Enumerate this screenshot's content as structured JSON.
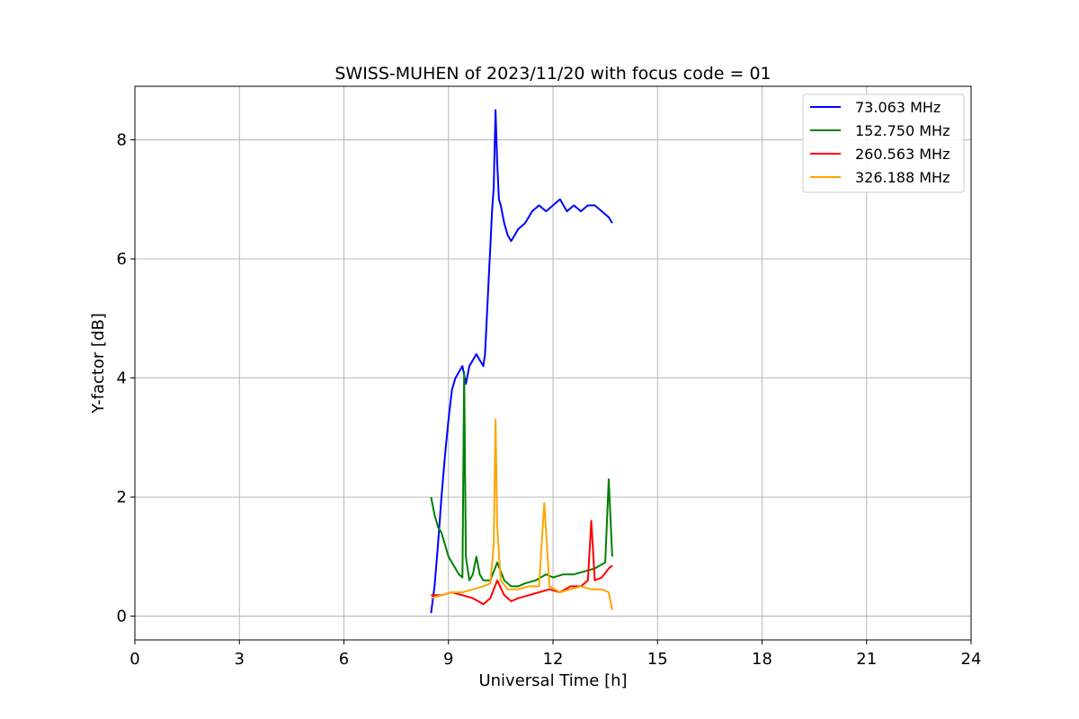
{
  "chart_data": {
    "type": "line",
    "title": "SWISS-MUHEN of 2023/11/20 with focus code = 01",
    "xlabel": "Universal Time [h]",
    "ylabel": "Y-factor [dB]",
    "xlim": [
      0,
      24
    ],
    "ylim": [
      -0.4,
      8.9
    ],
    "xticks": [
      "0",
      "3",
      "6",
      "9",
      "12",
      "15",
      "18",
      "21",
      "24"
    ],
    "yticks": [
      "0",
      "2",
      "4",
      "6",
      "8"
    ],
    "grid": true,
    "legend_position": "top-right",
    "series": [
      {
        "name": "73.063 MHz",
        "legend_label": " 73.063 MHz",
        "color": "#0000ff",
        "x": [
          8.5,
          8.6,
          8.7,
          8.8,
          8.9,
          9.0,
          9.1,
          9.2,
          9.3,
          9.4,
          9.5,
          9.6,
          9.7,
          9.8,
          9.9,
          10.0,
          10.05,
          10.1,
          10.15,
          10.2,
          10.25,
          10.3,
          10.35,
          10.4,
          10.45,
          10.5,
          10.6,
          10.7,
          10.8,
          10.9,
          11.0,
          11.2,
          11.4,
          11.6,
          11.8,
          12.0,
          12.2,
          12.4,
          12.6,
          12.8,
          13.0,
          13.2,
          13.4,
          13.6,
          13.7
        ],
        "y": [
          0.05,
          0.5,
          1.2,
          2.0,
          2.7,
          3.3,
          3.8,
          4.0,
          4.1,
          4.2,
          3.9,
          4.2,
          4.3,
          4.4,
          4.3,
          4.2,
          4.4,
          5.0,
          5.6,
          6.2,
          6.8,
          7.2,
          8.5,
          7.6,
          7.0,
          6.9,
          6.6,
          6.4,
          6.3,
          6.4,
          6.5,
          6.6,
          6.8,
          6.9,
          6.8,
          6.9,
          7.0,
          6.8,
          6.9,
          6.8,
          6.9,
          6.9,
          6.8,
          6.7,
          6.6
        ]
      },
      {
        "name": "152.750 MHz",
        "legend_label": "152.750 MHz",
        "color": "#008000",
        "x": [
          8.5,
          8.6,
          8.7,
          8.8,
          8.9,
          9.0,
          9.1,
          9.2,
          9.3,
          9.4,
          9.45,
          9.5,
          9.6,
          9.7,
          9.8,
          9.9,
          10.0,
          10.2,
          10.4,
          10.6,
          10.8,
          11.0,
          11.2,
          11.5,
          11.8,
          12.0,
          12.3,
          12.6,
          12.9,
          13.2,
          13.5,
          13.6,
          13.7
        ],
        "y": [
          2.0,
          1.7,
          1.5,
          1.4,
          1.2,
          1.0,
          0.9,
          0.8,
          0.7,
          0.65,
          4.1,
          1.0,
          0.6,
          0.7,
          1.0,
          0.7,
          0.6,
          0.6,
          0.9,
          0.6,
          0.5,
          0.5,
          0.55,
          0.6,
          0.7,
          0.65,
          0.7,
          0.7,
          0.75,
          0.8,
          0.9,
          2.3,
          1.0
        ]
      },
      {
        "name": "260.563 MHz",
        "legend_label": "260.563 MHz",
        "color": "#ff0000",
        "x": [
          8.5,
          8.8,
          9.1,
          9.4,
          9.7,
          10.0,
          10.2,
          10.4,
          10.6,
          10.8,
          11.0,
          11.3,
          11.6,
          11.9,
          12.2,
          12.5,
          12.8,
          13.0,
          13.1,
          13.2,
          13.4,
          13.6,
          13.7
        ],
        "y": [
          0.35,
          0.35,
          0.4,
          0.35,
          0.3,
          0.2,
          0.3,
          0.6,
          0.35,
          0.25,
          0.3,
          0.35,
          0.4,
          0.45,
          0.4,
          0.5,
          0.5,
          0.6,
          1.6,
          0.6,
          0.65,
          0.8,
          0.85
        ]
      },
      {
        "name": "326.188 MHz",
        "legend_label": "326.188 MHz",
        "color": "#ffa500",
        "x": [
          8.5,
          8.8,
          9.1,
          9.4,
          9.7,
          10.0,
          10.2,
          10.3,
          10.35,
          10.4,
          10.5,
          10.7,
          11.0,
          11.3,
          11.6,
          11.75,
          11.9,
          12.2,
          12.5,
          12.8,
          13.1,
          13.4,
          13.6,
          13.7
        ],
        "y": [
          0.3,
          0.35,
          0.4,
          0.4,
          0.45,
          0.5,
          0.55,
          1.2,
          3.3,
          1.5,
          0.6,
          0.45,
          0.45,
          0.5,
          0.5,
          1.9,
          0.5,
          0.4,
          0.45,
          0.5,
          0.45,
          0.45,
          0.4,
          0.1
        ]
      }
    ]
  }
}
